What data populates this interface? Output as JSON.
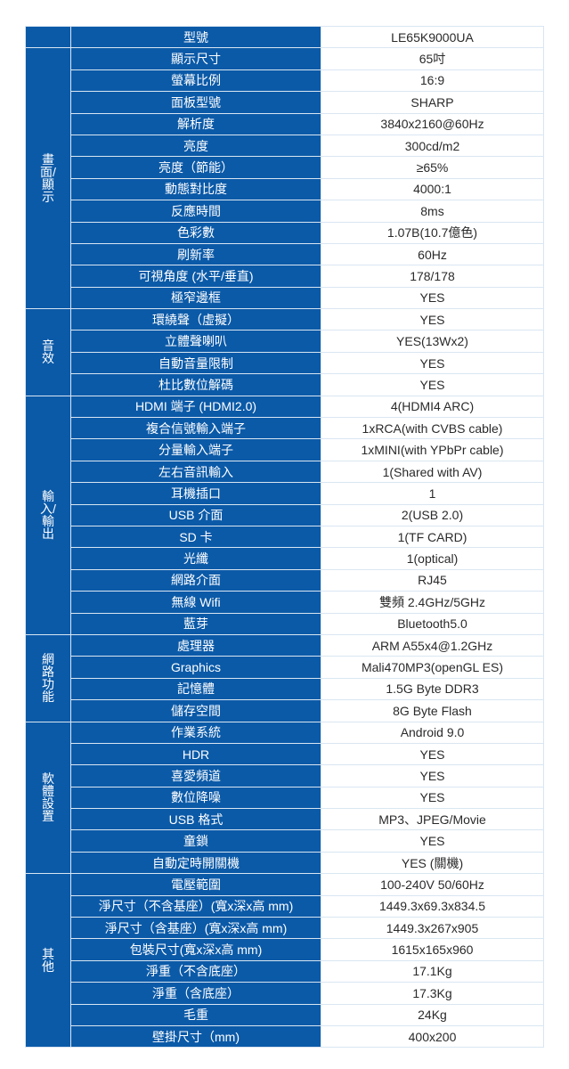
{
  "groups": [
    {
      "name": "",
      "rows": [
        {
          "label": "型號",
          "value": "LE65K9000UA"
        }
      ]
    },
    {
      "name": "畫面/顯示",
      "rows": [
        {
          "label": "顯示尺寸",
          "value": "65吋"
        },
        {
          "label": "螢幕比例",
          "value": "16:9"
        },
        {
          "label": "面板型號",
          "value": "SHARP"
        },
        {
          "label": "解析度",
          "value": "3840x2160@60Hz"
        },
        {
          "label": "亮度",
          "value": "300cd/m2"
        },
        {
          "label": "亮度（節能）",
          "value": "≥65%"
        },
        {
          "label": "動態對比度",
          "value": "4000:1"
        },
        {
          "label": "反應時間",
          "value": "8ms"
        },
        {
          "label": "色彩數",
          "value": "1.07B(10.7億色)"
        },
        {
          "label": "刷新率",
          "value": "60Hz"
        },
        {
          "label": "可視角度 (水平/垂直)",
          "value": "178/178"
        },
        {
          "label": "極窄邊框",
          "value": "YES"
        }
      ]
    },
    {
      "name": "音效",
      "rows": [
        {
          "label": "環繞聲（虛擬）",
          "value": "YES"
        },
        {
          "label": "立體聲喇叭",
          "value": "YES(13Wx2)"
        },
        {
          "label": "自動音量限制",
          "value": "YES"
        },
        {
          "label": "杜比數位解碼",
          "value": "YES"
        }
      ]
    },
    {
      "name": "輸入/輸出",
      "rows": [
        {
          "label": "HDMI 端子 (HDMI2.0)",
          "value": "4(HDMI4 ARC)"
        },
        {
          "label": "複合信號輸入端子",
          "value": "1xRCA(with CVBS cable)"
        },
        {
          "label": "分量輸入端子",
          "value": "1xMINI(with YPbPr cable)"
        },
        {
          "label": "左右音訊輸入",
          "value": "1(Shared with AV)"
        },
        {
          "label": "耳機插口",
          "value": "1"
        },
        {
          "label": "USB 介面",
          "value": "2(USB 2.0)"
        },
        {
          "label": "SD 卡",
          "value": "1(TF CARD)"
        },
        {
          "label": "光纖",
          "value": "1(optical)"
        },
        {
          "label": "網路介面",
          "value": "RJ45"
        },
        {
          "label": "無線 Wifi",
          "value": "雙頻 2.4GHz/5GHz"
        },
        {
          "label": "藍芽",
          "value": "Bluetooth5.0"
        }
      ]
    },
    {
      "name": "網路功能",
      "rows": [
        {
          "label": "處理器",
          "value": "ARM A55x4@1.2GHz"
        },
        {
          "label": "Graphics",
          "value": "Mali470MP3(openGL ES)"
        },
        {
          "label": "記憶體",
          "value": "1.5G Byte DDR3"
        },
        {
          "label": "儲存空間",
          "value": "8G Byte  Flash"
        }
      ]
    },
    {
      "name": "軟體設置",
      "rows": [
        {
          "label": "作業系統",
          "value": "Android 9.0"
        },
        {
          "label": "HDR",
          "value": "YES"
        },
        {
          "label": "喜愛頻道",
          "value": "YES"
        },
        {
          "label": "數位降噪",
          "value": "YES"
        },
        {
          "label": "USB 格式",
          "value": "MP3、JPEG/Movie"
        },
        {
          "label": "童鎖",
          "value": "YES"
        },
        {
          "label": "自動定時開關機",
          "value": "YES (關機)"
        }
      ]
    },
    {
      "name": "其他",
      "rows": [
        {
          "label": "電壓範圍",
          "value": "100-240V  50/60Hz"
        },
        {
          "label": "淨尺寸（不含基座）(寬x深x高 mm)",
          "value": "1449.3x69.3x834.5"
        },
        {
          "label": "淨尺寸（含基座）(寬x深x高 mm)",
          "value": "1449.3x267x905"
        },
        {
          "label": "包裝尺寸(寬x深x高 mm)",
          "value": "1615x165x960"
        },
        {
          "label": "淨重（不含底座）",
          "value": "17.1Kg"
        },
        {
          "label": "淨重（含底座）",
          "value": "17.3Kg"
        },
        {
          "label": "毛重",
          "value": "24Kg"
        },
        {
          "label": "壁掛尺寸（mm)",
          "value": "400x200"
        }
      ]
    }
  ]
}
